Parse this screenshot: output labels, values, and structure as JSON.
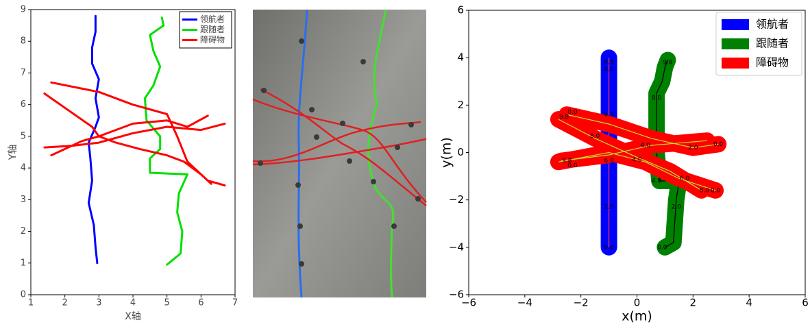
{
  "chart_data": [
    {
      "type": "line",
      "xlabel": "X轴",
      "ylabel": "Y轴",
      "xlim": [
        1,
        7
      ],
      "xticks": [
        1,
        2,
        3,
        4,
        5,
        6,
        7
      ],
      "ylim": [
        0,
        9
      ],
      "yticks": [
        0,
        1,
        2,
        3,
        4,
        5,
        6,
        7,
        8,
        9
      ],
      "legend": "upper right",
      "series": [
        {
          "name": "领航者",
          "color": "#0000ff",
          "x": [
            2.95,
            2.9,
            2.85,
            2.7,
            2.8,
            2.75,
            2.7,
            2.9,
            3.0,
            2.9,
            3.0,
            2.8,
            2.8,
            2.9,
            2.9
          ],
          "values": [
            1.0,
            1.5,
            2.2,
            2.9,
            3.6,
            4.3,
            4.8,
            5.3,
            5.6,
            6.2,
            6.8,
            7.3,
            7.8,
            8.3,
            8.8
          ]
        },
        {
          "name": "跟随者",
          "color": "#00e000",
          "x": [
            5.0,
            5.4,
            5.45,
            5.3,
            5.35,
            5.6,
            4.5,
            4.5,
            4.8,
            4.8,
            4.4,
            4.35,
            4.6,
            4.8,
            4.6,
            4.5,
            4.9,
            4.85
          ],
          "values": [
            0.95,
            1.3,
            2.0,
            2.6,
            3.2,
            3.8,
            3.85,
            4.3,
            4.6,
            5.0,
            5.5,
            6.2,
            6.6,
            7.2,
            7.7,
            8.2,
            8.5,
            8.75
          ]
        },
        {
          "name": "障碍物",
          "color": "#ff0000",
          "x": [
            1.6,
            3.0,
            4.0,
            5.0,
            5.3,
            5.6,
            6.2,
            6.7,
            null,
            1.4,
            2.0,
            2.8,
            3.0,
            3.5,
            4.2,
            5.0,
            5.5,
            6.0,
            6.3,
            null,
            1.6,
            2.5,
            3.0,
            4.0,
            5.0,
            5.6,
            6.2,
            null,
            1.4,
            2.2,
            3.0,
            4.0,
            5.0,
            6.0,
            6.7
          ],
          "values": [
            6.7,
            6.4,
            6.0,
            5.7,
            5.0,
            4.2,
            3.6,
            3.45,
            null,
            6.35,
            5.9,
            5.3,
            5.0,
            4.8,
            4.6,
            4.4,
            4.2,
            3.8,
            3.5,
            null,
            4.4,
            4.85,
            5.0,
            5.4,
            5.5,
            5.3,
            5.65,
            null,
            4.65,
            4.7,
            4.8,
            5.1,
            5.3,
            5.2,
            5.4
          ]
        }
      ]
    },
    {
      "type": "trajectory",
      "xlabel": "x(m)",
      "ylabel": "y(m)",
      "xlim": [
        -6,
        6
      ],
      "xticks": [
        {
          "value": -6,
          "label": "−6"
        },
        {
          "value": -4,
          "label": "−4"
        },
        {
          "value": -2,
          "label": "−2"
        },
        0,
        2,
        4,
        6
      ],
      "ylim": [
        -6,
        6
      ],
      "yticks": [
        {
          "value": -6,
          "label": "−6"
        },
        {
          "value": -4,
          "label": "−4"
        },
        {
          "value": -2,
          "label": "−2"
        },
        0,
        2,
        4,
        6
      ],
      "legend": "upper right",
      "series": [
        {
          "name": "领航者",
          "color": "#0000ff",
          "inner_color": "#ff4040",
          "x": [
            -1,
            -1,
            -1,
            -1,
            -1
          ],
          "values": [
            -4,
            -2,
            0,
            2,
            4
          ]
        },
        {
          "name": "跟随者",
          "color": "#008000",
          "inner_color": "#000000",
          "x": [
            1.0,
            1.3,
            1.4,
            1.5,
            0.8,
            0.7,
            0.7,
            0.9,
            1.0,
            1.1
          ],
          "values": [
            -4.0,
            -3.8,
            -2.0,
            -1.2,
            -1.2,
            0.0,
            2.5,
            3.0,
            3.6,
            3.9
          ]
        },
        {
          "name": "障碍物",
          "color": "#ff0000",
          "inner_color": "#c8e030",
          "x": [
            -2.5,
            -1.0,
            0.5,
            2.0,
            2.9,
            null,
            -2.8,
            -1.5,
            0.0,
            1.2,
            2.3,
            null,
            -2.7,
            -1.0,
            0.5,
            1.5,
            2.5,
            null,
            -2.8,
            -1.0,
            0.3,
            1.5,
            2.8
          ],
          "values": [
            1.6,
            1.2,
            0.6,
            0.2,
            0.35,
            null,
            1.4,
            0.6,
            -0.2,
            -0.8,
            -1.6,
            null,
            -0.35,
            -0.1,
            0.3,
            0.4,
            0.5,
            null,
            -0.4,
            0.0,
            -0.4,
            -1.1,
            -1.6
          ]
        }
      ],
      "annotations": [
        {
          "text": "9.8",
          "x": -1,
          "y": 3.8
        },
        {
          "text": "8.0",
          "x": -1,
          "y": 3.5
        },
        {
          "text": "6.0",
          "x": -1,
          "y": 1.6
        },
        {
          "text": "2.0",
          "x": -1,
          "y": -2.3
        },
        {
          "text": "0.0",
          "x": -1,
          "y": -4
        },
        {
          "text": "9.8",
          "x": 1.1,
          "y": 3.8
        },
        {
          "text": "8.0",
          "x": 0.7,
          "y": 2.3
        },
        {
          "text": "4.0",
          "x": 0.7,
          "y": -1.2
        },
        {
          "text": "2.0",
          "x": 1.4,
          "y": -2.3
        },
        {
          "text": "0.0",
          "x": 0.9,
          "y": -4
        },
        {
          "text": "0.0",
          "x": -2.3,
          "y": 1.7
        },
        {
          "text": "9.8",
          "x": -2.6,
          "y": 1.5
        },
        {
          "text": "8.0",
          "x": -1.5,
          "y": 0.7
        },
        {
          "text": "4.0",
          "x": 0.3,
          "y": 0.3
        },
        {
          "text": "2.0",
          "x": 2.0,
          "y": 0.2
        },
        {
          "text": "0.0",
          "x": 2.9,
          "y": 0.35
        },
        {
          "text": "9.8",
          "x": -2.5,
          "y": -0.35
        },
        {
          "text": "0.0",
          "x": -2.3,
          "y": -0.55
        },
        {
          "text": "6.0",
          "x": -1,
          "y": -0.35
        },
        {
          "text": "4.0",
          "x": 0,
          "y": -0.3
        },
        {
          "text": "6.0",
          "x": 1.7,
          "y": -1.1
        },
        {
          "text": "8.0",
          "x": 2.4,
          "y": -1.6
        },
        {
          "text": "0.0",
          "x": 2.8,
          "y": -1.6
        }
      ]
    }
  ]
}
